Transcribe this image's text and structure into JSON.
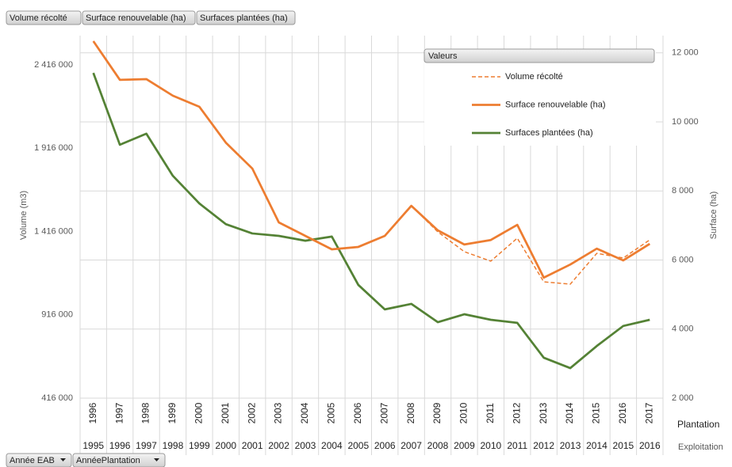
{
  "chart_data": {
    "type": "line",
    "field_buttons": [
      "Volume récolté",
      "Surface renouvelable (ha)",
      "Surfaces plantées (ha)"
    ],
    "axis_buttons": [
      "Année EAB",
      "AnnéePlantation"
    ],
    "legend_title": "Valeurs",
    "ylabel": "Volume (m3)",
    "y2label": "Surface (ha)",
    "xlabel": "Plantation",
    "xlabel2": "Exploitation",
    "categories": [
      "1996",
      "1997",
      "1998",
      "1999",
      "2000",
      "2001",
      "2002",
      "2003",
      "2004",
      "2005",
      "2006",
      "2007",
      "2008",
      "2009",
      "2010",
      "2011",
      "2012",
      "2013",
      "2014",
      "2015",
      "2016",
      "2017"
    ],
    "categories2": [
      "1995",
      "1996",
      "1997",
      "1998",
      "1999",
      "2000",
      "2001",
      "2002",
      "2003",
      "2004",
      "2005",
      "2006",
      "2007",
      "2008",
      "2009",
      "2010",
      "2011",
      "2012",
      "2013",
      "2014",
      "2015",
      "2016"
    ],
    "ylim": [
      416000,
      2591600
    ],
    "yticks": [
      {
        "value": 416000,
        "label": "416 000"
      },
      {
        "value": 916000,
        "label": "916 000"
      },
      {
        "value": 1416000,
        "label": "1 416 000"
      },
      {
        "value": 1916000,
        "label": "1 916 000"
      },
      {
        "value": 2416000,
        "label": "2 416 000"
      }
    ],
    "y2lim": [
      2000,
      12500
    ],
    "y2ticks": [
      {
        "value": 2000,
        "label": "2 000"
      },
      {
        "value": 4000,
        "label": "4 000"
      },
      {
        "value": 6000,
        "label": "6 000"
      },
      {
        "value": 8000,
        "label": "8 000"
      },
      {
        "value": 10000,
        "label": "10 000"
      },
      {
        "value": 12000,
        "label": "12 000"
      }
    ],
    "grid": true,
    "series": [
      {
        "name": "Volume récolté",
        "color": "#ed7d31",
        "dashed": true,
        "values": [
          2558000,
          2326000,
          2330000,
          2231000,
          2164000,
          1950000,
          1794000,
          1471000,
          1390000,
          1309000,
          1323000,
          1390000,
          1570000,
          1414000,
          1295000,
          1238000,
          1376000,
          1114000,
          1100000,
          1285000,
          1257000,
          1366000
        ]
      },
      {
        "name": "Surface renouvelable (ha)",
        "color": "#ed7d31",
        "axis": "y2",
        "values": [
          12340,
          11220,
          11240,
          10760,
          10440,
          9400,
          8650,
          7090,
          6700,
          6310,
          6380,
          6700,
          7570,
          6860,
          6450,
          6580,
          7020,
          5490,
          5870,
          6330,
          5990,
          6470
        ]
      },
      {
        "name": "Surfaces plantées (ha)",
        "color": "#548235",
        "axis": "y2",
        "values": [
          11420,
          9340,
          9660,
          8440,
          7640,
          7040,
          6770,
          6700,
          6560,
          6680,
          5280,
          4570,
          4730,
          4200,
          4430,
          4270,
          4180,
          3170,
          2870,
          3510,
          4090,
          4270
        ]
      }
    ]
  }
}
